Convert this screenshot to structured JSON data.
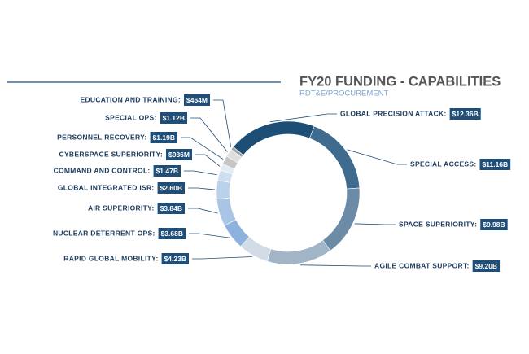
{
  "chart_data": {
    "type": "donut",
    "title": "FY20 FUNDING - CAPABILITIES",
    "subtitle": "RDT&E/PROCUREMENT",
    "categories": [
      "GLOBAL PRECISION ATTACK:",
      "SPECIAL ACCESS:",
      "SPACE SUPERIORITY:",
      "AGILE COMBAT SUPPORT:",
      "RAPID GLOBAL MOBILITY:",
      "NUCLEAR DETERRENT OPS:",
      "AIR SUPERIORITY:",
      "GLOBAL INTEGRATED ISR:",
      "COMMAND AND CONTROL:",
      "CYBERSPACE SUPERIORITY:",
      "PERSONNEL RECOVERY:",
      "SPECIAL OPS:",
      "EDUCATION AND TRAINING:"
    ],
    "values": [
      12.36,
      11.16,
      9.98,
      9.2,
      4.23,
      3.68,
      3.84,
      2.6,
      1.47,
      0.936,
      1.19,
      1.12,
      0.464
    ],
    "value_labels": [
      "$12.36B",
      "$11.16B",
      "$9.98B",
      "$9.20B",
      "$4.23B",
      "$3.68B",
      "$3.84B",
      "$2.60B",
      "$1.47B",
      "$936M",
      "$1.19B",
      "$1.12B",
      "$464M"
    ],
    "colors": [
      "#1d4e75",
      "#3f6b8e",
      "#6c8ba7",
      "#a2b5c7",
      "#d2dce6",
      "#8db3dc",
      "#a8c5e5",
      "#bad1eb",
      "#cddef0",
      "#e3ebf5",
      "#c6c6c6",
      "#dedede",
      "#a3a3a3"
    ]
  }
}
